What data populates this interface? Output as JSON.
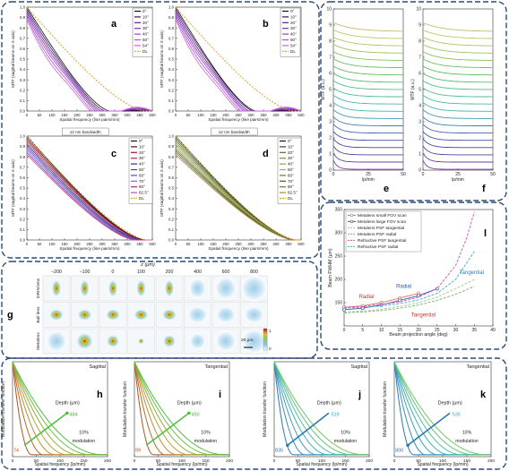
{
  "chart_data": [
    {
      "id": "a",
      "type": "line",
      "ylabel": "MTF (sagittal beams on X axis)",
      "xlabel": "Spatial frequency (line pairs/mm)",
      "xlim": [
        0,
        500
      ],
      "ylim": [
        0,
        1
      ],
      "xticks": [
        0,
        50,
        100,
        150,
        200,
        250,
        300,
        350,
        400,
        450,
        500
      ],
      "yticks": [
        0,
        0.1,
        0.2,
        0.3,
        0.4,
        0.5,
        0.6,
        0.7,
        0.8,
        0.9,
        1.0
      ],
      "legend_position": "top-right",
      "series": [
        {
          "name": "0°",
          "color": "#111111",
          "cutoff": 330
        },
        {
          "name": "10°",
          "color": "#3b1460",
          "cutoff": 320
        },
        {
          "name": "20°",
          "color": "#5a1f8a",
          "cutoff": 310
        },
        {
          "name": "30°",
          "color": "#7d2fb0",
          "cutoff": 300
        },
        {
          "name": "40°",
          "color": "#9c3fcc",
          "cutoff": 290
        },
        {
          "name": "50°",
          "color": "#b64fd8",
          "cutoff": 275
        },
        {
          "name": "54°",
          "color": "#cc62e0",
          "cutoff": 260
        },
        {
          "name": "DL",
          "color": "#e0a030",
          "cutoff": 470,
          "dashed": true
        }
      ]
    },
    {
      "id": "b",
      "type": "line",
      "ylabel": "MTF (sagittal beams on X axis)",
      "xlabel": "Spatial frequency (line pairs/mm)",
      "xlim": [
        0,
        500
      ],
      "ylim": [
        0,
        1
      ],
      "xticks": [
        0,
        50,
        100,
        150,
        200,
        250,
        300,
        350,
        400,
        450,
        500
      ],
      "yticks": [
        0,
        0.1,
        0.2,
        0.3,
        0.4,
        0.5,
        0.6,
        0.7,
        0.8,
        0.9,
        1.0
      ],
      "legend_position": "top-right",
      "series": [
        {
          "name": "0°",
          "color": "#111111",
          "cutoff": 320
        },
        {
          "name": "10°",
          "color": "#3b1460",
          "cutoff": 315
        },
        {
          "name": "20°",
          "color": "#5a1f8a",
          "cutoff": 305
        },
        {
          "name": "30°",
          "color": "#7d2fb0",
          "cutoff": 295
        },
        {
          "name": "40°",
          "color": "#9c3fcc",
          "cutoff": 285
        },
        {
          "name": "50°",
          "color": "#b64fd8",
          "cutoff": 270
        },
        {
          "name": "54°",
          "color": "#cc62e0",
          "cutoff": 255
        },
        {
          "name": "DL",
          "color": "#e0a030",
          "cutoff": 470,
          "dashed": true
        }
      ]
    },
    {
      "id": "c",
      "type": "line",
      "ylabel": "MTF (sagittal beams on X axis)",
      "xlabel": "Spatial frequency (line pairs/mm)",
      "annotation": "12 nm bandwidth",
      "xlim": [
        0,
        500
      ],
      "ylim": [
        0,
        1
      ],
      "xticks": [
        0,
        50,
        100,
        150,
        200,
        250,
        300,
        350,
        400,
        450,
        500
      ],
      "yticks": [
        0,
        0.1,
        0.2,
        0.3,
        0.4,
        0.5,
        0.6,
        0.7,
        0.8,
        0.9,
        1.0
      ],
      "legend_position": "top-right",
      "series": [
        {
          "name": "0°",
          "color": "#111111",
          "cutoff": 470
        },
        {
          "name": "10°",
          "color": "#5a0f1a",
          "cutoff": 468
        },
        {
          "name": "20°",
          "color": "#8a1a2a",
          "cutoff": 465
        },
        {
          "name": "30°",
          "color": "#b02a3a",
          "cutoff": 462
        },
        {
          "name": "40°",
          "color": "#3a2a80",
          "cutoff": 455
        },
        {
          "name": "50°",
          "color": "#4a3aa0",
          "cutoff": 450
        },
        {
          "name": "60°",
          "color": "#5a4ac0",
          "cutoff": 445
        },
        {
          "name": "70°",
          "color": "#7a6ad0",
          "cutoff": 440
        },
        {
          "name": "80°",
          "color": "#9a2a8a",
          "cutoff": 435
        },
        {
          "name": "82.5°",
          "color": "#c04aa0",
          "cutoff": 430
        },
        {
          "name": "DL",
          "color": "#e0a030",
          "cutoff": 480,
          "dashed": true
        }
      ]
    },
    {
      "id": "d",
      "type": "line",
      "ylabel": "MTF (sagittal beams on X axis)",
      "xlabel": "Spatial frequency (line pairs/mm)",
      "annotation": "12 nm bandwidth",
      "xlim": [
        0,
        500
      ],
      "ylim": [
        0,
        1
      ],
      "xticks": [
        0,
        50,
        100,
        150,
        200,
        250,
        300,
        350,
        400,
        450,
        500
      ],
      "yticks": [
        0,
        0.1,
        0.2,
        0.3,
        0.4,
        0.5,
        0.6,
        0.7,
        0.8,
        0.9,
        1.0
      ],
      "legend_position": "top-right",
      "series": [
        {
          "name": "0°",
          "color": "#111111",
          "cutoff": 478
        },
        {
          "name": "10°",
          "color": "#3a4a20",
          "cutoff": 477
        },
        {
          "name": "20°",
          "color": "#5a6a30",
          "cutoff": 476
        },
        {
          "name": "30°",
          "color": "#7a8a40",
          "cutoff": 475
        },
        {
          "name": "40°",
          "color": "#8aa040",
          "cutoff": 474
        },
        {
          "name": "50°",
          "color": "#a0b050",
          "cutoff": 473
        },
        {
          "name": "60°",
          "color": "#6a7a3a",
          "cutoff": 472
        },
        {
          "name": "70°",
          "color": "#4a5a2a",
          "cutoff": 471
        },
        {
          "name": "80°",
          "color": "#8a6a2a",
          "cutoff": 470
        },
        {
          "name": "82.5°",
          "color": "#a08a3a",
          "cutoff": 469
        },
        {
          "name": "DL",
          "color": "#e0a030",
          "cutoff": 480,
          "dashed": true
        }
      ]
    },
    {
      "id": "e",
      "type": "line",
      "ylabel": "MTF (a.u.)",
      "xlabel": "lp/mm",
      "xlim": [
        0,
        50
      ],
      "ylim": [
        0,
        10
      ],
      "xticks": [
        0,
        25,
        50
      ],
      "yticks": [
        0,
        1,
        2,
        3,
        4,
        5,
        6,
        7,
        8,
        9,
        10
      ],
      "curve_count": 20
    },
    {
      "id": "f",
      "type": "line",
      "ylabel": "MTF (a.u.)",
      "xlabel": "lp/mm",
      "xlim": [
        0,
        50
      ],
      "ylim": [
        0,
        10
      ],
      "xticks": [
        0,
        25,
        50
      ],
      "yticks": [
        0,
        1,
        2,
        3,
        4,
        5,
        6,
        7,
        8,
        9,
        10
      ],
      "curve_count": 20
    },
    {
      "id": "l",
      "type": "line",
      "ylabel": "Beam FWHM (μm)",
      "xlabel": "Beam projection angle (deg)",
      "xlim": [
        0,
        40
      ],
      "ylim": [
        100,
        350
      ],
      "xticks": [
        0,
        5,
        10,
        15,
        20,
        25,
        30,
        35,
        40
      ],
      "yticks": [
        150,
        200,
        250,
        300,
        350
      ],
      "legend_position": "top-left",
      "annotations": [
        "Radial",
        "Radial",
        "Tangential",
        "Tangential"
      ],
      "series": [
        {
          "name": "Metalens small FOV scan",
          "color": "#e07060",
          "style": "marker",
          "x": [
            0,
            5,
            10,
            15,
            20
          ],
          "y": [
            140,
            143,
            150,
            160,
            170
          ]
        },
        {
          "name": "Metalens large FOV scan",
          "color": "#3a5aa0",
          "style": "marker",
          "x": [
            0,
            5,
            10,
            15,
            20,
            25
          ],
          "y": [
            135,
            138,
            145,
            155,
            165,
            180
          ]
        },
        {
          "name": "Metalens PSF tangential",
          "color": "#a8c880",
          "style": "dashed",
          "x": [
            0,
            5,
            10,
            15,
            20,
            25,
            30,
            35
          ],
          "y": [
            130,
            132,
            136,
            142,
            150,
            162,
            180,
            200
          ]
        },
        {
          "name": "Metalens PSF radial",
          "color": "#7ab07a",
          "style": "dashed",
          "x": [
            0,
            5,
            10,
            15,
            20,
            25,
            30,
            35
          ],
          "y": [
            128,
            130,
            133,
            138,
            145,
            155,
            168,
            185
          ]
        },
        {
          "name": "Refractive PSF tangential",
          "color": "#d050c0",
          "style": "dashed",
          "x": [
            0,
            5,
            10,
            15,
            20,
            25,
            30,
            33,
            35
          ],
          "y": [
            140,
            142,
            146,
            152,
            162,
            180,
            230,
            290,
            345
          ]
        },
        {
          "name": "Refractive PSF radial",
          "color": "#40b0d0",
          "style": "dashed",
          "x": [
            0,
            5,
            10,
            15,
            20,
            25,
            30,
            35
          ],
          "y": [
            138,
            140,
            143,
            148,
            156,
            170,
            200,
            260
          ]
        }
      ]
    },
    {
      "id": "g",
      "type": "heatmap",
      "header_label": "z (μm)",
      "columns": [
        "−200",
        "−100",
        "0",
        "100",
        "200",
        "400",
        "600",
        "800"
      ],
      "rows": [
        "GRIN lens",
        "Ball lens",
        "Metalens"
      ],
      "scale_label": "20 μm",
      "colorbar_min": "0",
      "colorbar_max": "1"
    },
    {
      "id": "h",
      "type": "line",
      "ylabel": "Modulation transfer function",
      "xlabel": "Spatial frequency (lp/mm)",
      "title": "Sagittal",
      "depth_label": "Depth (μm)",
      "depth_start": "74",
      "depth_end": "484",
      "modulation_label": "10%\nmodulation",
      "xlim": [
        0,
        200
      ],
      "ylim": [
        0,
        1
      ],
      "xticks": [
        0,
        50,
        100,
        150,
        200
      ],
      "curve_colors": [
        "#a05a20",
        "#b86a20",
        "#c88a30",
        "#b0a040",
        "#90b040",
        "#70c040",
        "#50c040"
      ]
    },
    {
      "id": "i",
      "type": "line",
      "ylabel": "Modulation transfer function",
      "xlabel": "Spatial frequency (lp/mm)",
      "title": "Tangential",
      "depth_label": "Depth (μm)",
      "depth_start": "99",
      "depth_end": "450",
      "modulation_label": "10%\nmodulation",
      "xlim": [
        0,
        200
      ],
      "ylim": [
        0,
        1
      ],
      "xticks": [
        0,
        50,
        100,
        150,
        200
      ],
      "curve_colors": [
        "#a05a20",
        "#b86a20",
        "#c88a30",
        "#b0a040",
        "#90b040",
        "#70c040",
        "#50c040"
      ]
    },
    {
      "id": "j",
      "type": "line",
      "ylabel": "Modulation transfer function",
      "xlabel": "Spatial frequency (lp/mm)",
      "title": "Sagittal",
      "depth_label": "Depth (μm)",
      "depth_start": "835",
      "depth_end": "519",
      "modulation_label": "10%\nmodulation",
      "xlim": [
        0,
        200
      ],
      "ylim": [
        0,
        1
      ],
      "xticks": [
        0,
        50,
        100,
        150,
        200
      ],
      "curve_colors": [
        "#2a7ab0",
        "#3a8ac0",
        "#3aa0c0",
        "#40b0b0",
        "#50c0a0",
        "#60c080",
        "#70c860"
      ]
    },
    {
      "id": "k",
      "type": "line",
      "ylabel": "Modulation transfer function",
      "xlabel": "Spatial frequency (lp/mm)",
      "title": "Tangential",
      "depth_label": "Depth (μm)",
      "depth_start": "800",
      "depth_end": "535",
      "modulation_label": "10%\nmodulation",
      "xlim": [
        0,
        200
      ],
      "ylim": [
        0,
        1
      ],
      "xticks": [
        0,
        50,
        100,
        150,
        200
      ],
      "curve_colors": [
        "#2a7ab0",
        "#3a8ac0",
        "#3aa0c0",
        "#40b0b0",
        "#50c0a0",
        "#60c080",
        "#70c860"
      ]
    }
  ],
  "panel_letters": {
    "a": "a",
    "b": "b",
    "c": "c",
    "d": "d",
    "e": "e",
    "f": "f",
    "g": "g",
    "h": "h",
    "i": "i",
    "j": "j",
    "k": "k",
    "l": "l"
  }
}
